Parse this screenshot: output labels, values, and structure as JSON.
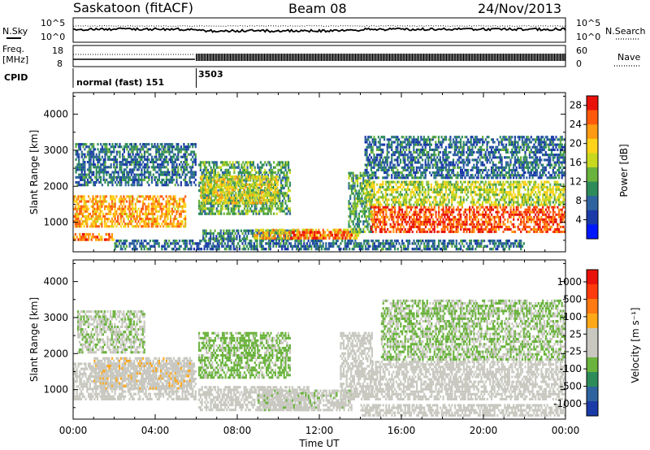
{
  "header": {
    "station": "Saskatoon (fitACF)",
    "beam": "Beam 08",
    "date": "24/Nov/2013"
  },
  "noise_panel": {
    "left_label": "N.Sky",
    "left_ticks": [
      "10^5",
      "10^0"
    ],
    "right_ticks": [
      "10^5",
      "10^0"
    ],
    "right_label": "N.Search"
  },
  "freq_panel": {
    "left_label_1": "Freq.",
    "left_label_2": "[MHz]",
    "left_ticks": [
      "18",
      "8"
    ],
    "right_ticks": [
      "60",
      "0"
    ],
    "right_label": "Nave"
  },
  "cpid_panel": {
    "label": "CPID",
    "mode_1": "normal (fast) 151",
    "mode_2": "3503",
    "mode_change_hour": 6
  },
  "chart_data": [
    {
      "type": "heatmap",
      "title": "",
      "xlabel": "Time UT",
      "ylabel": "Slant Range [km]",
      "xlim_hours": [
        0,
        24
      ],
      "ylim": [
        180,
        4600
      ],
      "x_ticks": [
        "00:00",
        "04:00",
        "08:00",
        "12:00",
        "16:00",
        "20:00",
        "00:00"
      ],
      "y_ticks": [
        1000,
        2000,
        3000,
        4000
      ],
      "colorbar": {
        "label": "Power [dB]",
        "ticks": [
          28,
          24,
          20,
          16,
          12,
          8,
          4
        ],
        "range": [
          0,
          30
        ],
        "colors": [
          "#0018ff",
          "#1a3aa8",
          "#2f63a0",
          "#2e8c5a",
          "#6ab33c",
          "#c8d81f",
          "#ffd21a",
          "#ff9a12",
          "#ff5a0c",
          "#e8120a"
        ]
      },
      "echo_regions": [
        {
          "t": [
            0.1,
            6.0
          ],
          "r": [
            2000,
            3200
          ],
          "level": 8
        },
        {
          "t": [
            0.0,
            5.5
          ],
          "r": [
            850,
            1750
          ],
          "level": 22
        },
        {
          "t": [
            0.0,
            2.0
          ],
          "r": [
            480,
            700
          ],
          "level": 24
        },
        {
          "t": [
            6.1,
            10.6
          ],
          "r": [
            1200,
            2700
          ],
          "level": 12
        },
        {
          "t": [
            6.2,
            10.0
          ],
          "r": [
            1500,
            2300
          ],
          "level": 18
        },
        {
          "t": [
            6.3,
            11.0
          ],
          "r": [
            500,
            800
          ],
          "level": 10
        },
        {
          "t": [
            8.8,
            14.0
          ],
          "r": [
            520,
            820
          ],
          "level": 20
        },
        {
          "t": [
            10.5,
            13.6
          ],
          "r": [
            520,
            760
          ],
          "level": 26
        },
        {
          "t": [
            13.4,
            14.6
          ],
          "r": [
            700,
            2400
          ],
          "level": 12
        },
        {
          "t": [
            14.2,
            24.0
          ],
          "r": [
            2200,
            3400
          ],
          "level": 8
        },
        {
          "t": [
            14.2,
            24.0
          ],
          "r": [
            1450,
            2150
          ],
          "level": 16
        },
        {
          "t": [
            14.5,
            24.0
          ],
          "r": [
            700,
            1450
          ],
          "level": 26
        },
        {
          "t": [
            2.0,
            22.0
          ],
          "r": [
            220,
            520
          ],
          "level": 8
        }
      ]
    },
    {
      "type": "heatmap",
      "title": "",
      "xlabel": "Time UT",
      "ylabel": "Slant Range [km]",
      "xlim_hours": [
        0,
        24
      ],
      "ylim": [
        180,
        4600
      ],
      "x_ticks": [
        "00:00",
        "04:00",
        "08:00",
        "12:00",
        "16:00",
        "20:00",
        "00:00"
      ],
      "y_ticks": [
        1000,
        2000,
        3000,
        4000
      ],
      "colorbar": {
        "label": "Velocity [m s⁻¹]",
        "ticks": [
          "1000",
          "500",
          "100",
          "25",
          "-25",
          "-100",
          "-500",
          "-1000"
        ],
        "range": [
          -1200,
          1200
        ],
        "colors": [
          "#e8120a",
          "#ff3a0c",
          "#ff7a12",
          "#ffa81a",
          "#c8c8c0",
          "#c8c8c0",
          "#6ab33c",
          "#2e8c5a",
          "#2f63a0",
          "#1a3aa8"
        ]
      },
      "echo_regions": [
        {
          "t": [
            0.0,
            6.0
          ],
          "r": [
            700,
            1750
          ],
          "v": 0
        },
        {
          "t": [
            1.0,
            5.8
          ],
          "r": [
            1000,
            1900
          ],
          "v": 150
        },
        {
          "t": [
            0.2,
            3.5
          ],
          "r": [
            2000,
            3200
          ],
          "v": -200
        },
        {
          "t": [
            6.1,
            10.6
          ],
          "r": [
            1300,
            2600
          ],
          "v": -300
        },
        {
          "t": [
            6.1,
            11.5
          ],
          "r": [
            400,
            1100
          ],
          "v": 0
        },
        {
          "t": [
            9.0,
            13.6
          ],
          "r": [
            400,
            1000
          ],
          "v": -150
        },
        {
          "t": [
            13.0,
            14.6
          ],
          "r": [
            700,
            2600
          ],
          "v": 0
        },
        {
          "t": [
            14.5,
            24.0
          ],
          "r": [
            700,
            1800
          ],
          "v": 0
        },
        {
          "t": [
            15.0,
            24.0
          ],
          "r": [
            1800,
            3500
          ],
          "v": -250
        },
        {
          "t": [
            14.0,
            24.0
          ],
          "r": [
            250,
            600
          ],
          "v": 0
        }
      ]
    }
  ]
}
